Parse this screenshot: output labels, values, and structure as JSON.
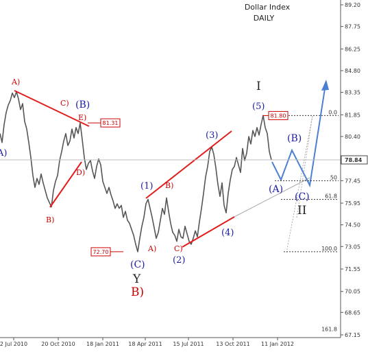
{
  "chart_data": {
    "type": "line",
    "title": "Dollar Index",
    "subtitle": "DAILY",
    "xlabel": "",
    "ylabel": "",
    "ylim": [
      67.15,
      89.2
    ],
    "y_ticks": [
      "89.20",
      "87.75",
      "86.25",
      "84.80",
      "83.35",
      "81.85",
      "80.40",
      "78.90",
      "77.45",
      "75.95",
      "74.50",
      "73.05",
      "71.55",
      "70.05",
      "68.65",
      "67.15"
    ],
    "x_ticks": [
      "2 Jul 2010",
      "20 Oct 2010",
      "18 Jan 2011",
      "18 Apr 2011",
      "15 Jul 2011",
      "13 Oct 2011",
      "11 Jan 2012"
    ],
    "grid": false,
    "last_price": "78.84",
    "price_marks": [
      {
        "label": "81.31",
        "value": 81.31
      },
      {
        "label": "72.70",
        "value": 72.7
      },
      {
        "label": "81.80",
        "value": 81.8
      }
    ],
    "fib_levels": [
      {
        "label": "0.0",
        "value": 81.8
      },
      {
        "label": "50",
        "value": 77.45
      },
      {
        "label": "61.8",
        "value": 76.2
      },
      {
        "label": "100.0",
        "value": 72.7
      },
      {
        "label": "161.8",
        "value": 67.3
      }
    ],
    "series": [
      {
        "values": [
          [
            0,
            80.6
          ],
          [
            3,
            80.0
          ],
          [
            6,
            81.2
          ],
          [
            9,
            82.0
          ],
          [
            12,
            82.5
          ],
          [
            15,
            82.8
          ],
          [
            18,
            83.3
          ],
          [
            21,
            83.0
          ],
          [
            24,
            83.4
          ],
          [
            27,
            82.9
          ],
          [
            30,
            82.2
          ],
          [
            33,
            82.6
          ],
          [
            36,
            81.4
          ],
          [
            39,
            80.9
          ],
          [
            42,
            80.0
          ],
          [
            45,
            79.0
          ],
          [
            48,
            77.8
          ],
          [
            51,
            77.0
          ],
          [
            54,
            77.6
          ],
          [
            57,
            77.2
          ],
          [
            60,
            77.9
          ],
          [
            63,
            77.3
          ],
          [
            66,
            76.8
          ],
          [
            69,
            76.3
          ],
          [
            72,
            76.0
          ],
          [
            75,
            75.7
          ],
          [
            78,
            76.8
          ],
          [
            81,
            77.4
          ],
          [
            84,
            77.8
          ],
          [
            87,
            78.8
          ],
          [
            90,
            79.4
          ],
          [
            93,
            80.1
          ],
          [
            96,
            80.6
          ],
          [
            99,
            79.8
          ],
          [
            102,
            80.1
          ],
          [
            105,
            80.9
          ],
          [
            108,
            80.3
          ],
          [
            111,
            81.0
          ],
          [
            114,
            80.6
          ],
          [
            117,
            81.3
          ],
          [
            120,
            80.2
          ],
          [
            123,
            79.0
          ],
          [
            126,
            78.2
          ],
          [
            129,
            78.6
          ],
          [
            132,
            78.8
          ],
          [
            135,
            78.1
          ],
          [
            138,
            77.6
          ],
          [
            141,
            78.4
          ],
          [
            144,
            78.9
          ],
          [
            147,
            78.5
          ],
          [
            150,
            77.4
          ],
          [
            153,
            77.0
          ],
          [
            156,
            76.6
          ],
          [
            159,
            77.0
          ],
          [
            162,
            76.5
          ],
          [
            165,
            76.1
          ],
          [
            168,
            75.6
          ],
          [
            171,
            75.9
          ],
          [
            174,
            75.6
          ],
          [
            177,
            75.8
          ],
          [
            180,
            75.0
          ],
          [
            183,
            75.4
          ],
          [
            186,
            74.8
          ],
          [
            189,
            74.6
          ],
          [
            192,
            74.2
          ],
          [
            195,
            73.8
          ],
          [
            198,
            73.2
          ],
          [
            201,
            72.7
          ],
          [
            204,
            73.6
          ],
          [
            207,
            74.4
          ],
          [
            210,
            75.0
          ],
          [
            213,
            75.9
          ],
          [
            216,
            76.2
          ],
          [
            219,
            75.6
          ],
          [
            222,
            75.0
          ],
          [
            225,
            74.3
          ],
          [
            228,
            73.6
          ],
          [
            231,
            74.0
          ],
          [
            234,
            74.8
          ],
          [
            237,
            75.6
          ],
          [
            240,
            75.2
          ],
          [
            243,
            76.3
          ],
          [
            246,
            75.4
          ],
          [
            249,
            74.6
          ],
          [
            252,
            74.0
          ],
          [
            255,
            73.8
          ],
          [
            258,
            73.4
          ],
          [
            261,
            74.2
          ],
          [
            264,
            73.7
          ],
          [
            267,
            73.6
          ],
          [
            270,
            74.4
          ],
          [
            273,
            73.9
          ],
          [
            276,
            73.4
          ],
          [
            279,
            73.2
          ],
          [
            282,
            73.6
          ],
          [
            285,
            74.1
          ],
          [
            288,
            73.7
          ],
          [
            291,
            74.7
          ],
          [
            294,
            75.6
          ],
          [
            297,
            76.6
          ],
          [
            300,
            77.7
          ],
          [
            303,
            78.4
          ],
          [
            306,
            79.4
          ],
          [
            309,
            79.7
          ],
          [
            312,
            79.2
          ],
          [
            315,
            78.3
          ],
          [
            318,
            77.2
          ],
          [
            321,
            76.4
          ],
          [
            324,
            77.3
          ],
          [
            327,
            75.8
          ],
          [
            330,
            75.3
          ],
          [
            333,
            76.6
          ],
          [
            336,
            77.5
          ],
          [
            339,
            78.2
          ],
          [
            342,
            78.4
          ],
          [
            345,
            79.0
          ],
          [
            348,
            78.5
          ],
          [
            351,
            78.0
          ],
          [
            354,
            79.6
          ],
          [
            357,
            78.8
          ],
          [
            360,
            79.3
          ],
          [
            363,
            80.4
          ],
          [
            366,
            79.9
          ],
          [
            369,
            80.8
          ],
          [
            372,
            80.4
          ],
          [
            375,
            81.0
          ],
          [
            378,
            80.5
          ],
          [
            381,
            81.2
          ],
          [
            384,
            81.8
          ],
          [
            387,
            81.0
          ],
          [
            390,
            80.6
          ],
          [
            393,
            79.4
          ],
          [
            396,
            78.84
          ]
        ]
      }
    ],
    "annotations": {
      "red_labels": [
        "A)",
        "C)",
        "E)",
        "D)",
        "B)",
        "B)",
        "A)",
        "C)",
        "B)"
      ],
      "blue_labels": [
        "(B)",
        "(1)",
        "(3)",
        "(5)",
        "(2)",
        "(4)",
        "(C)",
        "(A)",
        "(B)",
        "(C)",
        "A)"
      ],
      "black_labels": [
        "I",
        "Y",
        "II"
      ]
    }
  }
}
